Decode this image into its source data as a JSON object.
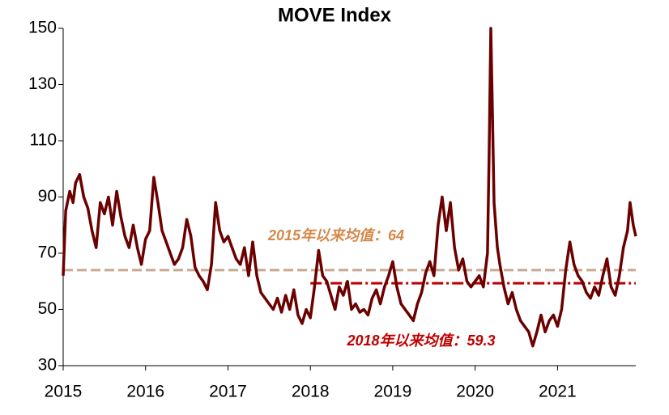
{
  "chart_data": {
    "type": "line",
    "title": "MOVE Index",
    "x": [
      2015.0,
      2015.03,
      2015.08,
      2015.12,
      2015.15,
      2015.2,
      2015.25,
      2015.3,
      2015.35,
      2015.4,
      2015.45,
      2015.5,
      2015.55,
      2015.6,
      2015.65,
      2015.7,
      2015.75,
      2015.8,
      2015.85,
      2015.9,
      2015.95,
      2016.0,
      2016.05,
      2016.1,
      2016.15,
      2016.2,
      2016.25,
      2016.3,
      2016.35,
      2016.4,
      2016.45,
      2016.5,
      2016.55,
      2016.6,
      2016.65,
      2016.7,
      2016.75,
      2016.8,
      2016.85,
      2016.9,
      2016.95,
      2017.0,
      2017.05,
      2017.1,
      2017.15,
      2017.2,
      2017.25,
      2017.3,
      2017.35,
      2017.4,
      2017.45,
      2017.5,
      2017.55,
      2017.6,
      2017.65,
      2017.7,
      2017.75,
      2017.8,
      2017.85,
      2017.9,
      2017.95,
      2018.0,
      2018.05,
      2018.1,
      2018.15,
      2018.2,
      2018.25,
      2018.3,
      2018.35,
      2018.4,
      2018.45,
      2018.5,
      2018.55,
      2018.6,
      2018.65,
      2018.7,
      2018.75,
      2018.8,
      2018.85,
      2018.9,
      2018.95,
      2019.0,
      2019.05,
      2019.1,
      2019.15,
      2019.2,
      2019.25,
      2019.3,
      2019.35,
      2019.4,
      2019.45,
      2019.5,
      2019.55,
      2019.6,
      2019.65,
      2019.7,
      2019.75,
      2019.8,
      2019.85,
      2019.9,
      2019.95,
      2020.0,
      2020.05,
      2020.1,
      2020.15,
      2020.17,
      2020.19,
      2020.21,
      2020.23,
      2020.27,
      2020.3,
      2020.35,
      2020.4,
      2020.45,
      2020.5,
      2020.55,
      2020.6,
      2020.65,
      2020.7,
      2020.75,
      2020.8,
      2020.85,
      2020.9,
      2020.95,
      2021.0,
      2021.05,
      2021.1,
      2021.15,
      2021.2,
      2021.25,
      2021.3,
      2021.35,
      2021.4,
      2021.45,
      2021.5,
      2021.55,
      2021.6,
      2021.65,
      2021.7,
      2021.75,
      2021.8,
      2021.85,
      2021.88,
      2021.92,
      2021.95
    ],
    "series": [
      {
        "name": "MOVE Index",
        "color": "#6b0000",
        "values": [
          62,
          85,
          92,
          88,
          95,
          98,
          90,
          86,
          78,
          72,
          88,
          84,
          90,
          80,
          92,
          83,
          76,
          72,
          80,
          72,
          66,
          75,
          78,
          97,
          88,
          78,
          74,
          70,
          66,
          68,
          72,
          82,
          76,
          65,
          62,
          60,
          57,
          66,
          88,
          78,
          74,
          76,
          72,
          68,
          66,
          72,
          62,
          74,
          62,
          56,
          54,
          52,
          50,
          54,
          49,
          55,
          50,
          57,
          48,
          45,
          50,
          47,
          58,
          71,
          62,
          60,
          55,
          50,
          58,
          55,
          60,
          50,
          52,
          49,
          50,
          48,
          54,
          57,
          52,
          58,
          62,
          67,
          58,
          52,
          50,
          48,
          46,
          52,
          56,
          63,
          67,
          62,
          80,
          90,
          78,
          88,
          72,
          64,
          68,
          60,
          58,
          60,
          62,
          58,
          70,
          105,
          150,
          120,
          88,
          72,
          66,
          58,
          52,
          56,
          50,
          46,
          44,
          42,
          37,
          42,
          48,
          42,
          46,
          48,
          44,
          50,
          64,
          74,
          66,
          62,
          60,
          56,
          54,
          58,
          55,
          62,
          68,
          58,
          55,
          62,
          72,
          78,
          88,
          80,
          76
        ]
      }
    ],
    "hlines": [
      {
        "value": 64,
        "start": 2015,
        "label": "2015年以来均值：64",
        "color": "#c8a890",
        "label_color": "#d4894a",
        "dash": "12 5"
      },
      {
        "value": 59.3,
        "start": 2018,
        "label": "2018年以来均值：59.3",
        "color": "#c00000",
        "label_color": "#c00000",
        "dash": "14 4 3 4"
      }
    ],
    "xlim": [
      2015,
      2021.95
    ],
    "xticks": [
      2015,
      2016,
      2017,
      2018,
      2019,
      2020,
      2021
    ],
    "ylim": [
      30,
      150
    ],
    "yticks": [
      30,
      50,
      70,
      90,
      110,
      130,
      150
    ]
  }
}
